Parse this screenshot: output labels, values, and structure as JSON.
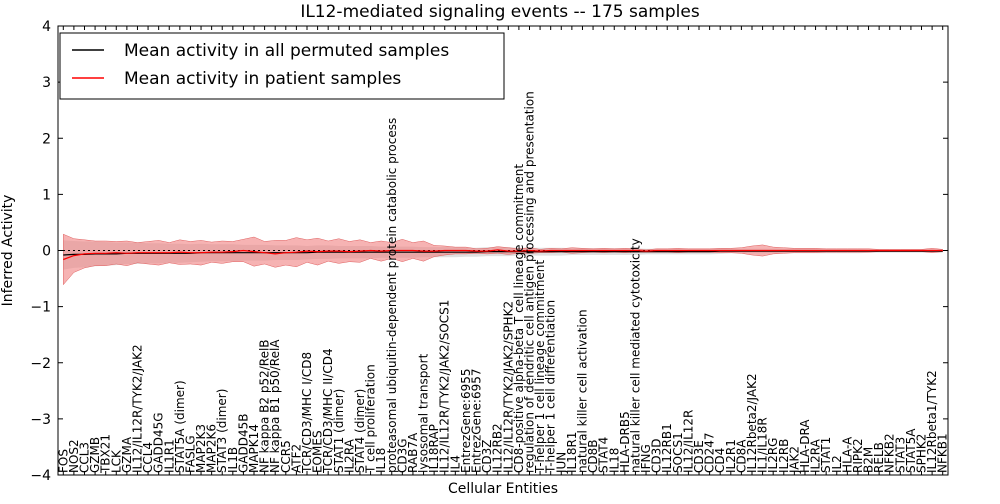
{
  "chart_data": {
    "type": "line",
    "title": "IL12-mediated signaling events -- 175 samples",
    "xlabel": "Cellular Entities",
    "ylabel": "Inferred Activity",
    "ylim": [
      -4,
      4
    ],
    "yticks": [
      -4,
      -3,
      -2,
      -1,
      0,
      1,
      2,
      3,
      4
    ],
    "grid": false,
    "legend_position": "top-left",
    "colors": {
      "permuted": "#000000",
      "patient": "#ff0000",
      "patient_band": "#f08080",
      "permuted_band": "#bbbbbb",
      "zero_line": "#000000"
    },
    "categories": [
      "FOS",
      "NOS2",
      "CCL3",
      "GZMB",
      "TBX21",
      "LCK",
      "GZMA",
      "IL12/IL12R/TYK2/JAK2",
      "CCL4",
      "GADD45G",
      "IL1R1",
      "STAT5A (dimer)",
      "FASLG",
      "MAP2K3",
      "MAP2K6",
      "STAT3 (dimer)",
      "IL1B",
      "GADD45B",
      "MAPK14",
      "NF kappa B2 p52/RelB",
      "NF kappa B1 p50/RelA",
      "CCR5",
      "ATF2",
      "TCR/CD3/MHC I/CD8",
      "EOMES",
      "TCR/CD3/MHC II/CD4",
      "STAT1 (dimer)",
      "IL2RA",
      "STAT4 (dimer)",
      "T cell proliferation",
      "IL18",
      "proteasomal ubiquitin-dependent protein catabolic process",
      "CD3G",
      "RAB7A",
      "lysosomal transport",
      "IL18RAP",
      "IL12/IL12R/TYK2/JAK2/SOCS1",
      "IL4",
      "EntrezGene:6955",
      "EntrezGene:6957",
      "CD3Z",
      "IL12RB2",
      "IL12/IL12R/TYK2/JAK2/SPHK2",
      "CD8-positive alpha-beta T cell lineage commitment",
      "regulation of dendritic cell antigen processing and presentation",
      "T-helper 1 cell lineage commitment",
      "T-helper 1 cell differentiation",
      "JUN",
      "IL18R1",
      "natural killer cell activation",
      "CD8B",
      "STAT4",
      "IL18",
      "HLA-DRB5",
      "natural killer cell mediated cytotoxicity",
      "IFNG",
      "CD3D",
      "IL12RB1",
      "SOCS1",
      "IL12/IL12R",
      "CD3E",
      "CD247",
      "CD4",
      "IL2R1",
      "CD8A",
      "IL12Rbeta2/JAK2",
      "IL1/IL18R",
      "IL2RG",
      "IL2RB",
      "JAK2",
      "HLA-DRA",
      "IL2RA",
      "STAT1",
      "IL2",
      "HLA-A",
      "RIPK2",
      "B2M",
      "RELB",
      "NFKB2",
      "STAT3",
      "STAT5A",
      "SPHK2",
      "IL12Rbeta1/TYK2",
      "NFKB1"
    ],
    "series": [
      {
        "name": "Mean activity in all permuted samples",
        "color": "#000000",
        "values": [
          -0.08,
          -0.07,
          -0.07,
          -0.06,
          -0.06,
          -0.06,
          -0.05,
          -0.05,
          -0.05,
          -0.05,
          -0.05,
          -0.05,
          -0.05,
          -0.04,
          -0.04,
          -0.04,
          -0.04,
          -0.04,
          -0.04,
          -0.04,
          -0.04,
          -0.04,
          -0.04,
          -0.04,
          -0.03,
          -0.03,
          -0.03,
          -0.03,
          -0.03,
          -0.03,
          -0.03,
          -0.03,
          -0.03,
          -0.03,
          -0.03,
          -0.03,
          -0.03,
          -0.03,
          -0.03,
          -0.03,
          -0.02,
          -0.02,
          -0.02,
          -0.02,
          -0.02,
          -0.02,
          -0.02,
          -0.02,
          -0.02,
          -0.02,
          -0.02,
          -0.02,
          -0.02,
          -0.02,
          -0.02,
          -0.02,
          -0.02,
          -0.02,
          -0.02,
          -0.02,
          -0.02,
          -0.02,
          -0.01,
          -0.01,
          -0.01,
          -0.01,
          -0.01,
          -0.01,
          -0.01,
          -0.01,
          -0.01,
          -0.01,
          -0.01,
          -0.01,
          -0.01,
          -0.01,
          -0.01,
          -0.01,
          -0.01,
          -0.01,
          -0.01,
          -0.01,
          -0.01,
          -0.01
        ],
        "band": [
          0.26,
          0.24,
          0.23,
          0.22,
          0.21,
          0.2,
          0.19,
          0.19,
          0.18,
          0.18,
          0.17,
          0.17,
          0.16,
          0.16,
          0.15,
          0.15,
          0.15,
          0.14,
          0.14,
          0.14,
          0.13,
          0.13,
          0.13,
          0.12,
          0.12,
          0.12,
          0.11,
          0.11,
          0.11,
          0.11,
          0.1,
          0.1,
          0.1,
          0.1,
          0.09,
          0.09,
          0.09,
          0.09,
          0.08,
          0.08,
          0.08,
          0.08,
          0.08,
          0.07,
          0.07,
          0.07,
          0.07,
          0.07,
          0.06,
          0.06,
          0.06,
          0.06,
          0.06,
          0.06,
          0.06,
          0.05,
          0.05,
          0.05,
          0.05,
          0.05,
          0.05,
          0.05,
          0.05,
          0.04,
          0.04,
          0.04,
          0.04,
          0.04,
          0.04,
          0.04,
          0.04,
          0.04,
          0.04,
          0.04,
          0.04,
          0.04,
          0.03,
          0.03,
          0.03,
          0.03,
          0.03,
          0.03,
          0.03,
          0.03
        ]
      },
      {
        "name": "Mean activity in patient samples",
        "color": "#ff0000",
        "values": [
          -0.16,
          -0.09,
          -0.06,
          -0.05,
          -0.05,
          -0.04,
          -0.05,
          -0.04,
          -0.04,
          -0.04,
          -0.04,
          -0.03,
          -0.04,
          -0.04,
          -0.03,
          -0.03,
          -0.02,
          0.0,
          -0.02,
          -0.04,
          -0.06,
          -0.04,
          -0.03,
          -0.01,
          -0.02,
          -0.01,
          -0.01,
          -0.02,
          -0.01,
          0.0,
          -0.01,
          0.0,
          0.0,
          0.0,
          -0.01,
          -0.01,
          0.0,
          0.0,
          0.0,
          -0.01,
          -0.01,
          0.01,
          -0.01,
          -0.01,
          0.0,
          -0.01,
          0.0,
          0.0,
          0.0,
          0.0,
          0.0,
          0.0,
          0.0,
          0.0,
          0.0,
          -0.01,
          0.0,
          0.0,
          0.0,
          0.0,
          0.0,
          0.0,
          0.0,
          0.0,
          0.0,
          0.0,
          0.0,
          0.0,
          0.0,
          0.0,
          0.0,
          0.0,
          0.0,
          0.0,
          0.0,
          0.0,
          0.0,
          0.0,
          0.0,
          0.0,
          0.0,
          0.0,
          0.0,
          0.0
        ],
        "band": [
          0.45,
          0.3,
          0.25,
          0.22,
          0.22,
          0.2,
          0.22,
          0.18,
          0.2,
          0.22,
          0.18,
          0.22,
          0.2,
          0.22,
          0.18,
          0.2,
          0.18,
          0.2,
          0.26,
          0.2,
          0.24,
          0.22,
          0.26,
          0.2,
          0.24,
          0.18,
          0.22,
          0.18,
          0.2,
          0.14,
          0.18,
          0.14,
          0.2,
          0.14,
          0.18,
          0.1,
          0.08,
          0.06,
          0.06,
          0.04,
          0.05,
          0.06,
          0.06,
          0.04,
          0.05,
          0.03,
          0.04,
          0.03,
          0.05,
          0.04,
          0.03,
          0.04,
          0.03,
          0.04,
          0.03,
          0.02,
          0.03,
          0.03,
          0.04,
          0.03,
          0.03,
          0.03,
          0.04,
          0.04,
          0.05,
          0.08,
          0.1,
          0.06,
          0.05,
          0.04,
          0.04,
          0.04,
          0.03,
          0.03,
          0.03,
          0.03,
          0.03,
          0.02,
          0.02,
          0.02,
          0.02,
          0.02,
          0.04,
          0.02
        ]
      }
    ]
  }
}
